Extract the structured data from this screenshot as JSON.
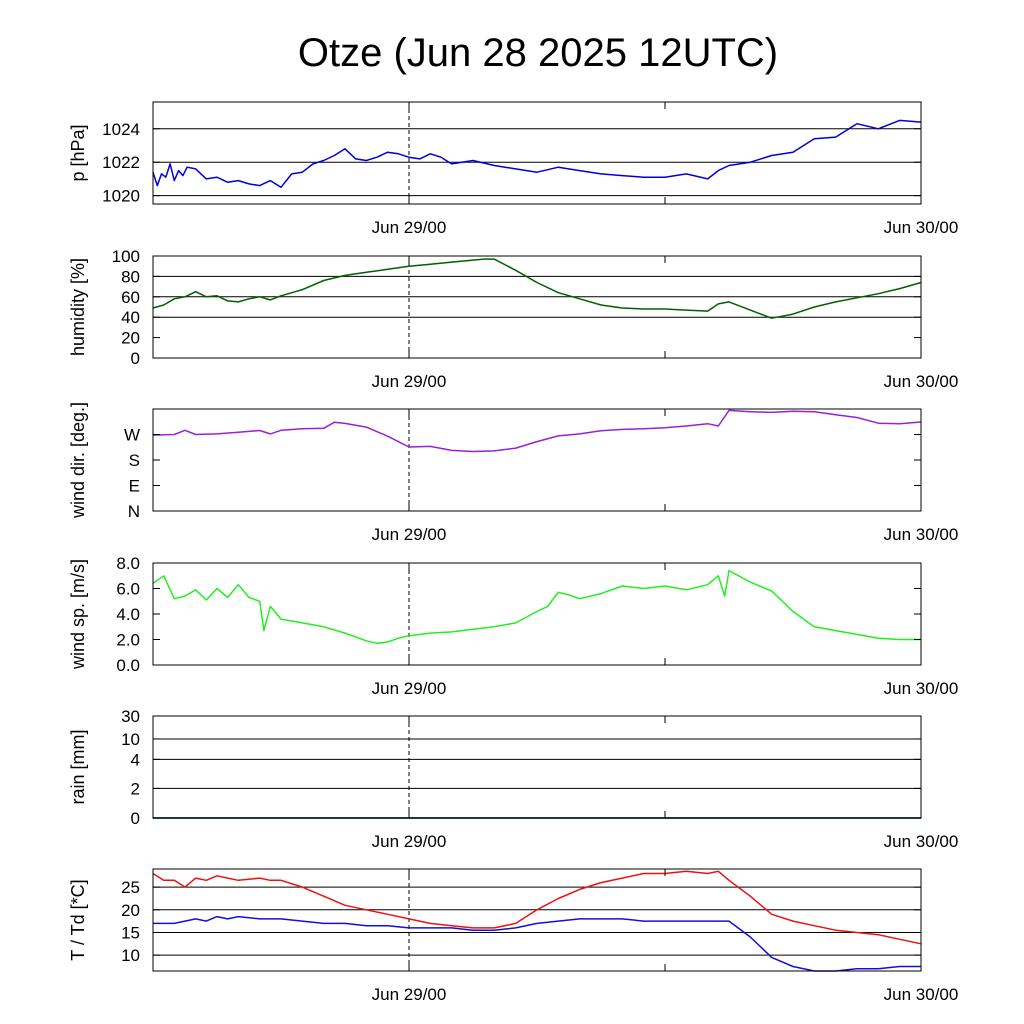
{
  "title": "Otze (Jun 28 2025 12UTC)",
  "colors": {
    "pressure": "#0000dd",
    "humidity": "#006000",
    "wind_dir": "#9a20d8",
    "wind_speed": "#22ee22",
    "rain": "#0000dd",
    "temperature": "#ee1010",
    "dewpoint": "#1010dd",
    "grid": "#000000"
  },
  "chart_data": [
    {
      "type": "line",
      "ylabel": "p [hPa]",
      "x_ticks": [
        "Jun 29/00",
        "Jun 30/00"
      ],
      "x_range_hours": [
        0,
        36
      ],
      "marker_hour": 12,
      "ylim": [
        1019.5,
        1025.6
      ],
      "y_ticks": [
        1020,
        1022,
        1024
      ],
      "y_tick_labels": [
        "1020",
        "1022",
        "1024"
      ],
      "grid_y": [
        1020,
        1022,
        1024
      ],
      "series": [
        {
          "color_key": "pressure",
          "x": [
            0,
            0.2,
            0.4,
            0.6,
            0.8,
            1.0,
            1.2,
            1.4,
            1.6,
            2.0,
            2.5,
            3.0,
            3.5,
            4.0,
            4.5,
            5.0,
            5.5,
            6.0,
            6.5,
            7.0,
            7.5,
            8.0,
            8.5,
            9.0,
            9.5,
            10.0,
            10.5,
            11.0,
            11.5,
            12.0,
            12.5,
            13.0,
            13.5,
            14.0,
            15.0,
            16.0,
            17.0,
            18.0,
            19.0,
            20.0,
            21.0,
            22.0,
            23.0,
            24.0,
            25.0,
            26.0,
            26.5,
            27.0,
            28.0,
            29.0,
            30.0,
            31.0,
            32.0,
            33.0,
            34.0,
            35.0,
            36.0
          ],
          "y": [
            1021.4,
            1020.6,
            1021.3,
            1021.1,
            1021.9,
            1020.9,
            1021.5,
            1021.2,
            1021.7,
            1021.6,
            1021.0,
            1021.1,
            1020.8,
            1020.9,
            1020.7,
            1020.6,
            1020.9,
            1020.5,
            1021.3,
            1021.4,
            1021.9,
            1022.1,
            1022.4,
            1022.8,
            1022.2,
            1022.1,
            1022.3,
            1022.6,
            1022.5,
            1022.3,
            1022.2,
            1022.5,
            1022.3,
            1021.9,
            1022.1,
            1021.8,
            1021.6,
            1021.4,
            1021.7,
            1021.5,
            1021.3,
            1021.2,
            1021.1,
            1021.1,
            1021.3,
            1021.0,
            1021.5,
            1021.8,
            1022.0,
            1022.4,
            1022.6,
            1023.4,
            1023.5,
            1024.3,
            1024.0,
            1024.5,
            1024.4
          ]
        }
      ]
    },
    {
      "type": "line",
      "ylabel": "humidity [%]",
      "x_ticks": [
        "Jun 29/00",
        "Jun 30/00"
      ],
      "x_range_hours": [
        0,
        36
      ],
      "marker_hour": 12,
      "ylim": [
        0,
        100
      ],
      "y_ticks": [
        0,
        20,
        40,
        60,
        80,
        100
      ],
      "y_tick_labels": [
        "0",
        "20",
        "40",
        "60",
        "80",
        "100"
      ],
      "grid_y": [
        40,
        60,
        80
      ],
      "series": [
        {
          "color_key": "humidity",
          "x": [
            0,
            0.5,
            1.0,
            1.5,
            2.0,
            2.5,
            3.0,
            3.5,
            4.0,
            4.5,
            5.0,
            5.5,
            6.0,
            7.0,
            8.0,
            9.0,
            10.0,
            11.0,
            12.0,
            13.0,
            14.0,
            15.0,
            15.5,
            16.0,
            17.0,
            18.0,
            19.0,
            20.0,
            21.0,
            22.0,
            23.0,
            24.0,
            25.0,
            26.0,
            26.5,
            27.0,
            28.0,
            29.0,
            30.0,
            31.0,
            32.0,
            33.0,
            34.0,
            35.0,
            36.0
          ],
          "y": [
            49,
            52,
            58,
            60,
            65,
            60,
            61,
            56,
            55,
            58,
            60,
            57,
            61,
            67,
            76,
            81,
            84,
            87,
            90,
            92,
            94,
            96,
            97,
            97,
            86,
            74,
            64,
            58,
            52,
            49,
            48,
            48,
            47,
            46,
            53,
            55,
            47,
            39,
            43,
            50,
            55,
            59,
            63,
            68,
            74
          ]
        }
      ]
    },
    {
      "type": "line",
      "ylabel": "wind dir. [deg.]",
      "x_ticks": [
        "Jun 29/00",
        "Jun 30/00"
      ],
      "x_range_hours": [
        0,
        36
      ],
      "marker_hour": 12,
      "ylim": [
        0,
        360
      ],
      "y_ticks": [
        0,
        90,
        180,
        270
      ],
      "y_tick_labels": [
        "N",
        "E",
        "S",
        "W"
      ],
      "grid_y": [],
      "series": [
        {
          "color_key": "wind_dir",
          "x": [
            0,
            1.0,
            1.5,
            2.0,
            3.0,
            4.0,
            5.0,
            5.5,
            6.0,
            7.0,
            8.0,
            8.5,
            9.0,
            10.0,
            11.0,
            12.0,
            13.0,
            14.0,
            15.0,
            16.0,
            17.0,
            18.0,
            19.0,
            20.0,
            21.0,
            22.0,
            23.0,
            24.0,
            25.0,
            26.0,
            26.5,
            27.0,
            28.0,
            29.0,
            30.0,
            31.0,
            32.0,
            33.0,
            34.0,
            35.0,
            36.0
          ],
          "y": [
            268,
            270,
            285,
            270,
            272,
            278,
            284,
            272,
            285,
            290,
            292,
            313,
            309,
            296,
            264,
            226,
            228,
            214,
            210,
            212,
            222,
            245,
            265,
            272,
            283,
            288,
            290,
            294,
            300,
            308,
            300,
            355,
            350,
            348,
            352,
            350,
            340,
            330,
            310,
            308,
            314
          ]
        }
      ]
    },
    {
      "type": "line",
      "ylabel": "wind sp. [m/s]",
      "x_ticks": [
        "Jun 29/00",
        "Jun 30/00"
      ],
      "x_range_hours": [
        0,
        36
      ],
      "marker_hour": 12,
      "ylim": [
        0,
        8
      ],
      "y_ticks": [
        0,
        2,
        4,
        6,
        8
      ],
      "y_tick_labels": [
        "0.0",
        "2.0",
        "4.0",
        "6.0",
        "8.0"
      ],
      "grid_y": [],
      "series": [
        {
          "color_key": "wind_speed",
          "x": [
            0,
            0.5,
            1.0,
            1.5,
            2.0,
            2.5,
            3.0,
            3.5,
            4.0,
            4.5,
            5.0,
            5.2,
            5.5,
            6.0,
            7.0,
            8.0,
            9.0,
            10.0,
            10.5,
            11.0,
            11.5,
            12.0,
            13.0,
            14.0,
            15.0,
            16.0,
            17.0,
            18.0,
            18.5,
            19.0,
            19.5,
            20.0,
            21.0,
            22.0,
            23.0,
            24.0,
            25.0,
            26.0,
            26.5,
            26.8,
            27.0,
            28.0,
            29.0,
            30.0,
            31.0,
            32.0,
            33.0,
            34.0,
            35.0,
            36.0
          ],
          "y": [
            6.4,
            7.0,
            5.2,
            5.4,
            5.9,
            5.1,
            6.0,
            5.3,
            6.3,
            5.3,
            5.0,
            2.7,
            4.6,
            3.6,
            3.3,
            3.0,
            2.5,
            1.9,
            1.7,
            1.8,
            2.1,
            2.3,
            2.5,
            2.6,
            2.8,
            3.0,
            3.3,
            4.2,
            4.6,
            5.7,
            5.5,
            5.2,
            5.6,
            6.2,
            6.0,
            6.2,
            5.9,
            6.3,
            7.0,
            5.4,
            7.4,
            6.5,
            5.8,
            4.2,
            3.0,
            2.7,
            2.4,
            2.1,
            2.0,
            2.0
          ]
        }
      ]
    },
    {
      "type": "line",
      "ylabel": "rain [mm]",
      "x_ticks": [
        "Jun 29/00",
        "Jun 30/00"
      ],
      "x_range_hours": [
        0,
        36
      ],
      "marker_hour": 12,
      "scale": "nonlinear",
      "ylim": [
        0,
        30
      ],
      "y_ticks": [
        0,
        2,
        4,
        10,
        30
      ],
      "y_tick_labels": [
        "0",
        "2",
        "4",
        "10",
        "30"
      ],
      "grid_y": [
        2,
        4,
        10,
        30
      ],
      "series": [
        {
          "color_key": "rain",
          "x": [
            0,
            36
          ],
          "y": [
            0,
            0
          ]
        },
        {
          "color_key": "humidity",
          "x": [
            0,
            36
          ],
          "y": [
            0,
            0
          ]
        }
      ]
    },
    {
      "type": "line",
      "ylabel": "T / Td [*C]",
      "x_ticks": [
        "Jun 29/00",
        "Jun 30/00"
      ],
      "x_range_hours": [
        0,
        36
      ],
      "marker_hour": 12,
      "ylim": [
        6.5,
        29
      ],
      "y_ticks": [
        10,
        15,
        20,
        25
      ],
      "y_tick_labels": [
        "10",
        "15",
        "20",
        "25"
      ],
      "grid_y": [
        10,
        15,
        20,
        25
      ],
      "series": [
        {
          "name": "T",
          "color_key": "temperature",
          "x": [
            0,
            0.5,
            1.0,
            1.5,
            2.0,
            2.5,
            3.0,
            3.5,
            4.0,
            5.0,
            5.5,
            6.0,
            7.0,
            8.0,
            9.0,
            10.0,
            11.0,
            12.0,
            13.0,
            14.0,
            15.0,
            16.0,
            17.0,
            18.0,
            19.0,
            20.0,
            21.0,
            22.0,
            23.0,
            24.0,
            25.0,
            26.0,
            26.5,
            27.0,
            28.0,
            29.0,
            30.0,
            31.0,
            32.0,
            33.0,
            34.0,
            35.0,
            36.0
          ],
          "y": [
            28,
            26.5,
            26.5,
            25,
            27,
            26.5,
            27.5,
            27,
            26.5,
            27,
            26.5,
            26.5,
            25,
            23,
            21,
            20,
            19,
            18,
            17,
            16.5,
            16,
            16,
            17,
            20,
            22.5,
            24.5,
            26,
            27,
            28,
            28,
            28.5,
            28,
            28.5,
            26.5,
            23,
            19,
            17.5,
            16.5,
            15.5,
            15,
            14.5,
            13.5,
            12.5
          ]
        },
        {
          "name": "Td",
          "color_key": "dewpoint",
          "x": [
            0,
            0.5,
            1.0,
            2.0,
            2.5,
            3.0,
            3.5,
            4.0,
            5.0,
            6.0,
            7.0,
            8.0,
            9.0,
            10.0,
            11.0,
            12.0,
            13.0,
            14.0,
            15.0,
            16.0,
            17.0,
            18.0,
            19.0,
            20.0,
            21.0,
            22.0,
            23.0,
            24.0,
            25.0,
            26.0,
            27.0,
            28.0,
            29.0,
            30.0,
            31.0,
            32.0,
            33.0,
            34.0,
            35.0,
            36.0
          ],
          "y": [
            17,
            17,
            17,
            18,
            17.5,
            18.5,
            18,
            18.5,
            18,
            18,
            17.5,
            17,
            17,
            16.5,
            16.5,
            16,
            16,
            16,
            15.5,
            15.5,
            16,
            17,
            17.5,
            18,
            18,
            18,
            17.5,
            17.5,
            17.5,
            17.5,
            17.5,
            14,
            9.5,
            7.5,
            6.5,
            6.5,
            7,
            7,
            7.5,
            7.5
          ]
        }
      ]
    }
  ]
}
